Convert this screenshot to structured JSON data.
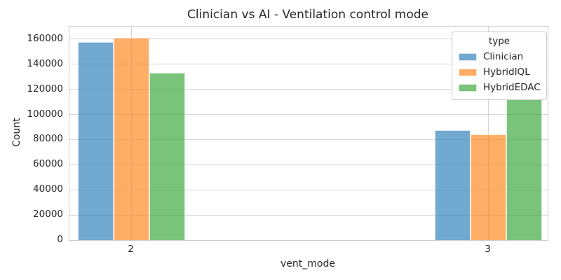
{
  "chart_data": {
    "type": "bar",
    "title": "Clinician vs AI - Ventilation control mode",
    "xlabel": "vent_mode",
    "ylabel": "Count",
    "categories": [
      "2",
      "3"
    ],
    "series": [
      {
        "name": "Clinician",
        "color": "rgba(31,119,180,0.63)",
        "values": [
          157500,
          87500
        ]
      },
      {
        "name": "HybridIQL",
        "color": "rgba(255,127,14,0.63)",
        "values": [
          161000,
          84000
        ]
      },
      {
        "name": "HybridEDAC",
        "color": "rgba(44,160,44,0.63)",
        "values": [
          133000,
          112000
        ]
      }
    ],
    "ylim": [
      0,
      170000
    ],
    "yticks": [
      0,
      20000,
      40000,
      60000,
      80000,
      100000,
      120000,
      140000,
      160000
    ],
    "legend": {
      "title": "type",
      "position": "upper right"
    },
    "grid": true,
    "colors": {
      "grid": "#d5d5d5",
      "spine": "#cccccc",
      "text": "#262626"
    }
  }
}
